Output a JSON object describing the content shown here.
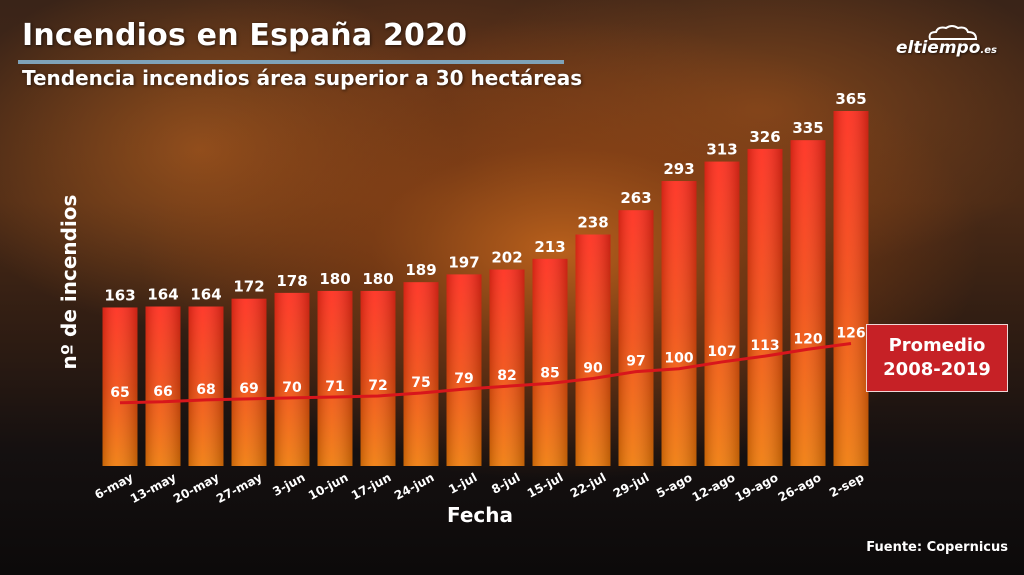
{
  "header": {
    "title": "Incendios en España 2020",
    "subtitle": "Tendencia incendios área superior a 30 hectáreas"
  },
  "logo": {
    "name": "eltiempo",
    "suffix": ".es"
  },
  "source": "Fuente: Copernicus",
  "legend": {
    "label": "Promedio\n2008-2019"
  },
  "colors": {
    "bar_top": "#ff2a1a",
    "bar_bottom": "#f07a08",
    "average_line": "#d8161c",
    "legend_bg": "#c62126",
    "title_underline": "#7fa2b8"
  },
  "chart_data": {
    "type": "bar",
    "title": "Incendios en España 2020",
    "subtitle": "Tendencia incendios área superior a 30 hectáreas",
    "xlabel": "Fecha",
    "ylabel": "nº de incendios",
    "categories": [
      "6-may",
      "13-may",
      "20-may",
      "27-may",
      "3-jun",
      "10-jun",
      "17-jun",
      "24-jun",
      "1-jul",
      "8-jul",
      "15-jul",
      "22-jul",
      "29-jul",
      "5-ago",
      "12-ago",
      "19-ago",
      "26-ago",
      "2-sep"
    ],
    "series": [
      {
        "values": [
          163,
          164,
          164,
          172,
          178,
          180,
          180,
          189,
          197,
          202,
          213,
          238,
          263,
          293,
          313,
          326,
          335,
          365
        ]
      },
      {
        "name": "Promedio 2008-2019",
        "type": "line",
        "values": [
          65,
          66,
          68,
          69,
          70,
          71,
          72,
          75,
          79,
          82,
          85,
          90,
          97,
          100,
          107,
          113,
          120,
          126
        ]
      }
    ],
    "ylim": [
      0,
      365
    ],
    "grid": false,
    "legend_position": "right"
  }
}
